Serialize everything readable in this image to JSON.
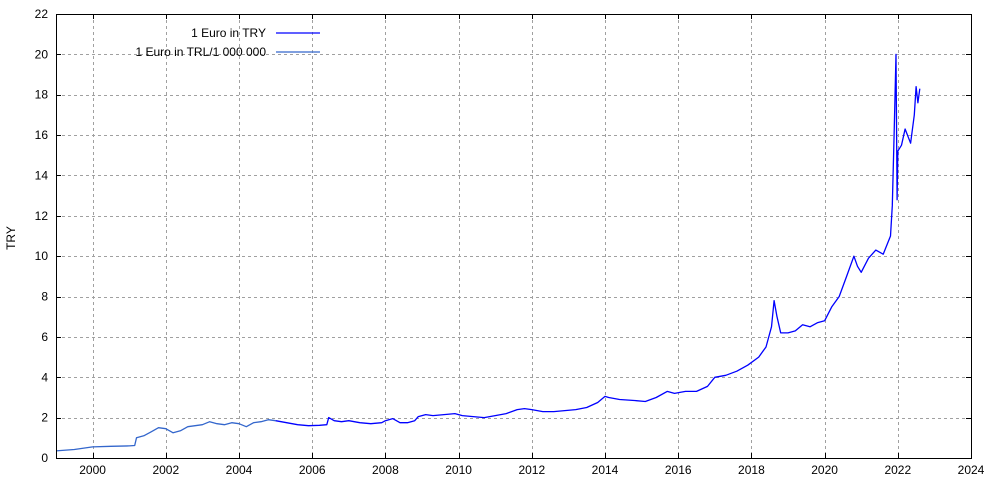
{
  "chart_data": {
    "type": "line",
    "title": "",
    "xlabel": "",
    "ylabel": "TRY",
    "xlim": [
      1999,
      2024
    ],
    "ylim": [
      0,
      22
    ],
    "xticks": [
      2000,
      2002,
      2004,
      2006,
      2008,
      2010,
      2012,
      2014,
      2016,
      2018,
      2020,
      2022,
      2024
    ],
    "yticks": [
      0,
      2,
      4,
      6,
      8,
      10,
      12,
      14,
      16,
      18,
      20,
      22
    ],
    "grid": true,
    "legend_position": "top-left",
    "series": [
      {
        "name": "1 Euro in TRY",
        "color": "#0000ff",
        "x": [
          2005.0,
          2005.3,
          2005.6,
          2005.9,
          2006.2,
          2006.4,
          2006.45,
          2006.6,
          2006.8,
          2007.0,
          2007.3,
          2007.6,
          2007.9,
          2008.0,
          2008.2,
          2008.4,
          2008.6,
          2008.8,
          2008.9,
          2009.1,
          2009.3,
          2009.6,
          2009.9,
          2010.1,
          2010.4,
          2010.7,
          2011.0,
          2011.3,
          2011.6,
          2011.8,
          2012.0,
          2012.3,
          2012.6,
          2012.9,
          2013.2,
          2013.5,
          2013.8,
          2014.0,
          2014.1,
          2014.4,
          2014.8,
          2015.1,
          2015.4,
          2015.7,
          2015.9,
          2016.2,
          2016.5,
          2016.8,
          2017.0,
          2017.3,
          2017.6,
          2017.9,
          2018.2,
          2018.4,
          2018.55,
          2018.62,
          2018.7,
          2018.8,
          2019.0,
          2019.2,
          2019.4,
          2019.6,
          2019.8,
          2020.0,
          2020.2,
          2020.4,
          2020.6,
          2020.8,
          2020.9,
          2021.0,
          2021.2,
          2021.4,
          2021.6,
          2021.8,
          2021.85,
          2021.9,
          2021.95,
          2021.98,
          2022.0,
          2022.1,
          2022.2,
          2022.35,
          2022.45,
          2022.5,
          2022.55,
          2022.6
        ],
        "y": [
          1.85,
          1.75,
          1.65,
          1.6,
          1.62,
          1.65,
          2.0,
          1.85,
          1.8,
          1.85,
          1.75,
          1.7,
          1.75,
          1.85,
          1.95,
          1.75,
          1.75,
          1.85,
          2.05,
          2.15,
          2.1,
          2.15,
          2.2,
          2.1,
          2.05,
          2.0,
          2.1,
          2.2,
          2.4,
          2.45,
          2.4,
          2.3,
          2.3,
          2.35,
          2.4,
          2.5,
          2.75,
          3.05,
          3.0,
          2.9,
          2.85,
          2.8,
          3.0,
          3.3,
          3.2,
          3.3,
          3.3,
          3.55,
          4.0,
          4.1,
          4.3,
          4.6,
          5.0,
          5.5,
          6.5,
          7.8,
          7.0,
          6.2,
          6.2,
          6.3,
          6.6,
          6.5,
          6.7,
          6.8,
          7.5,
          8.0,
          9.0,
          10.0,
          9.5,
          9.2,
          9.9,
          10.3,
          10.1,
          11.0,
          12.5,
          16.0,
          20.0,
          12.8,
          15.2,
          15.5,
          16.3,
          15.6,
          17.0,
          18.4,
          17.6,
          18.3
        ]
      },
      {
        "name": "1 Euro in TRL/1 000 000",
        "color": "#3366cc",
        "x": [
          1999.0,
          1999.5,
          2000.0,
          2000.5,
          2001.0,
          2001.15,
          2001.2,
          2001.4,
          2001.6,
          2001.8,
          2002.0,
          2002.2,
          2002.4,
          2002.6,
          2002.8,
          2003.0,
          2003.2,
          2003.4,
          2003.6,
          2003.8,
          2004.0,
          2004.2,
          2004.4,
          2004.6,
          2004.8,
          2005.0
        ],
        "y": [
          0.35,
          0.42,
          0.55,
          0.58,
          0.6,
          0.62,
          1.0,
          1.1,
          1.3,
          1.5,
          1.45,
          1.25,
          1.35,
          1.55,
          1.6,
          1.65,
          1.8,
          1.7,
          1.65,
          1.75,
          1.7,
          1.55,
          1.75,
          1.8,
          1.9,
          1.85
        ]
      }
    ]
  }
}
